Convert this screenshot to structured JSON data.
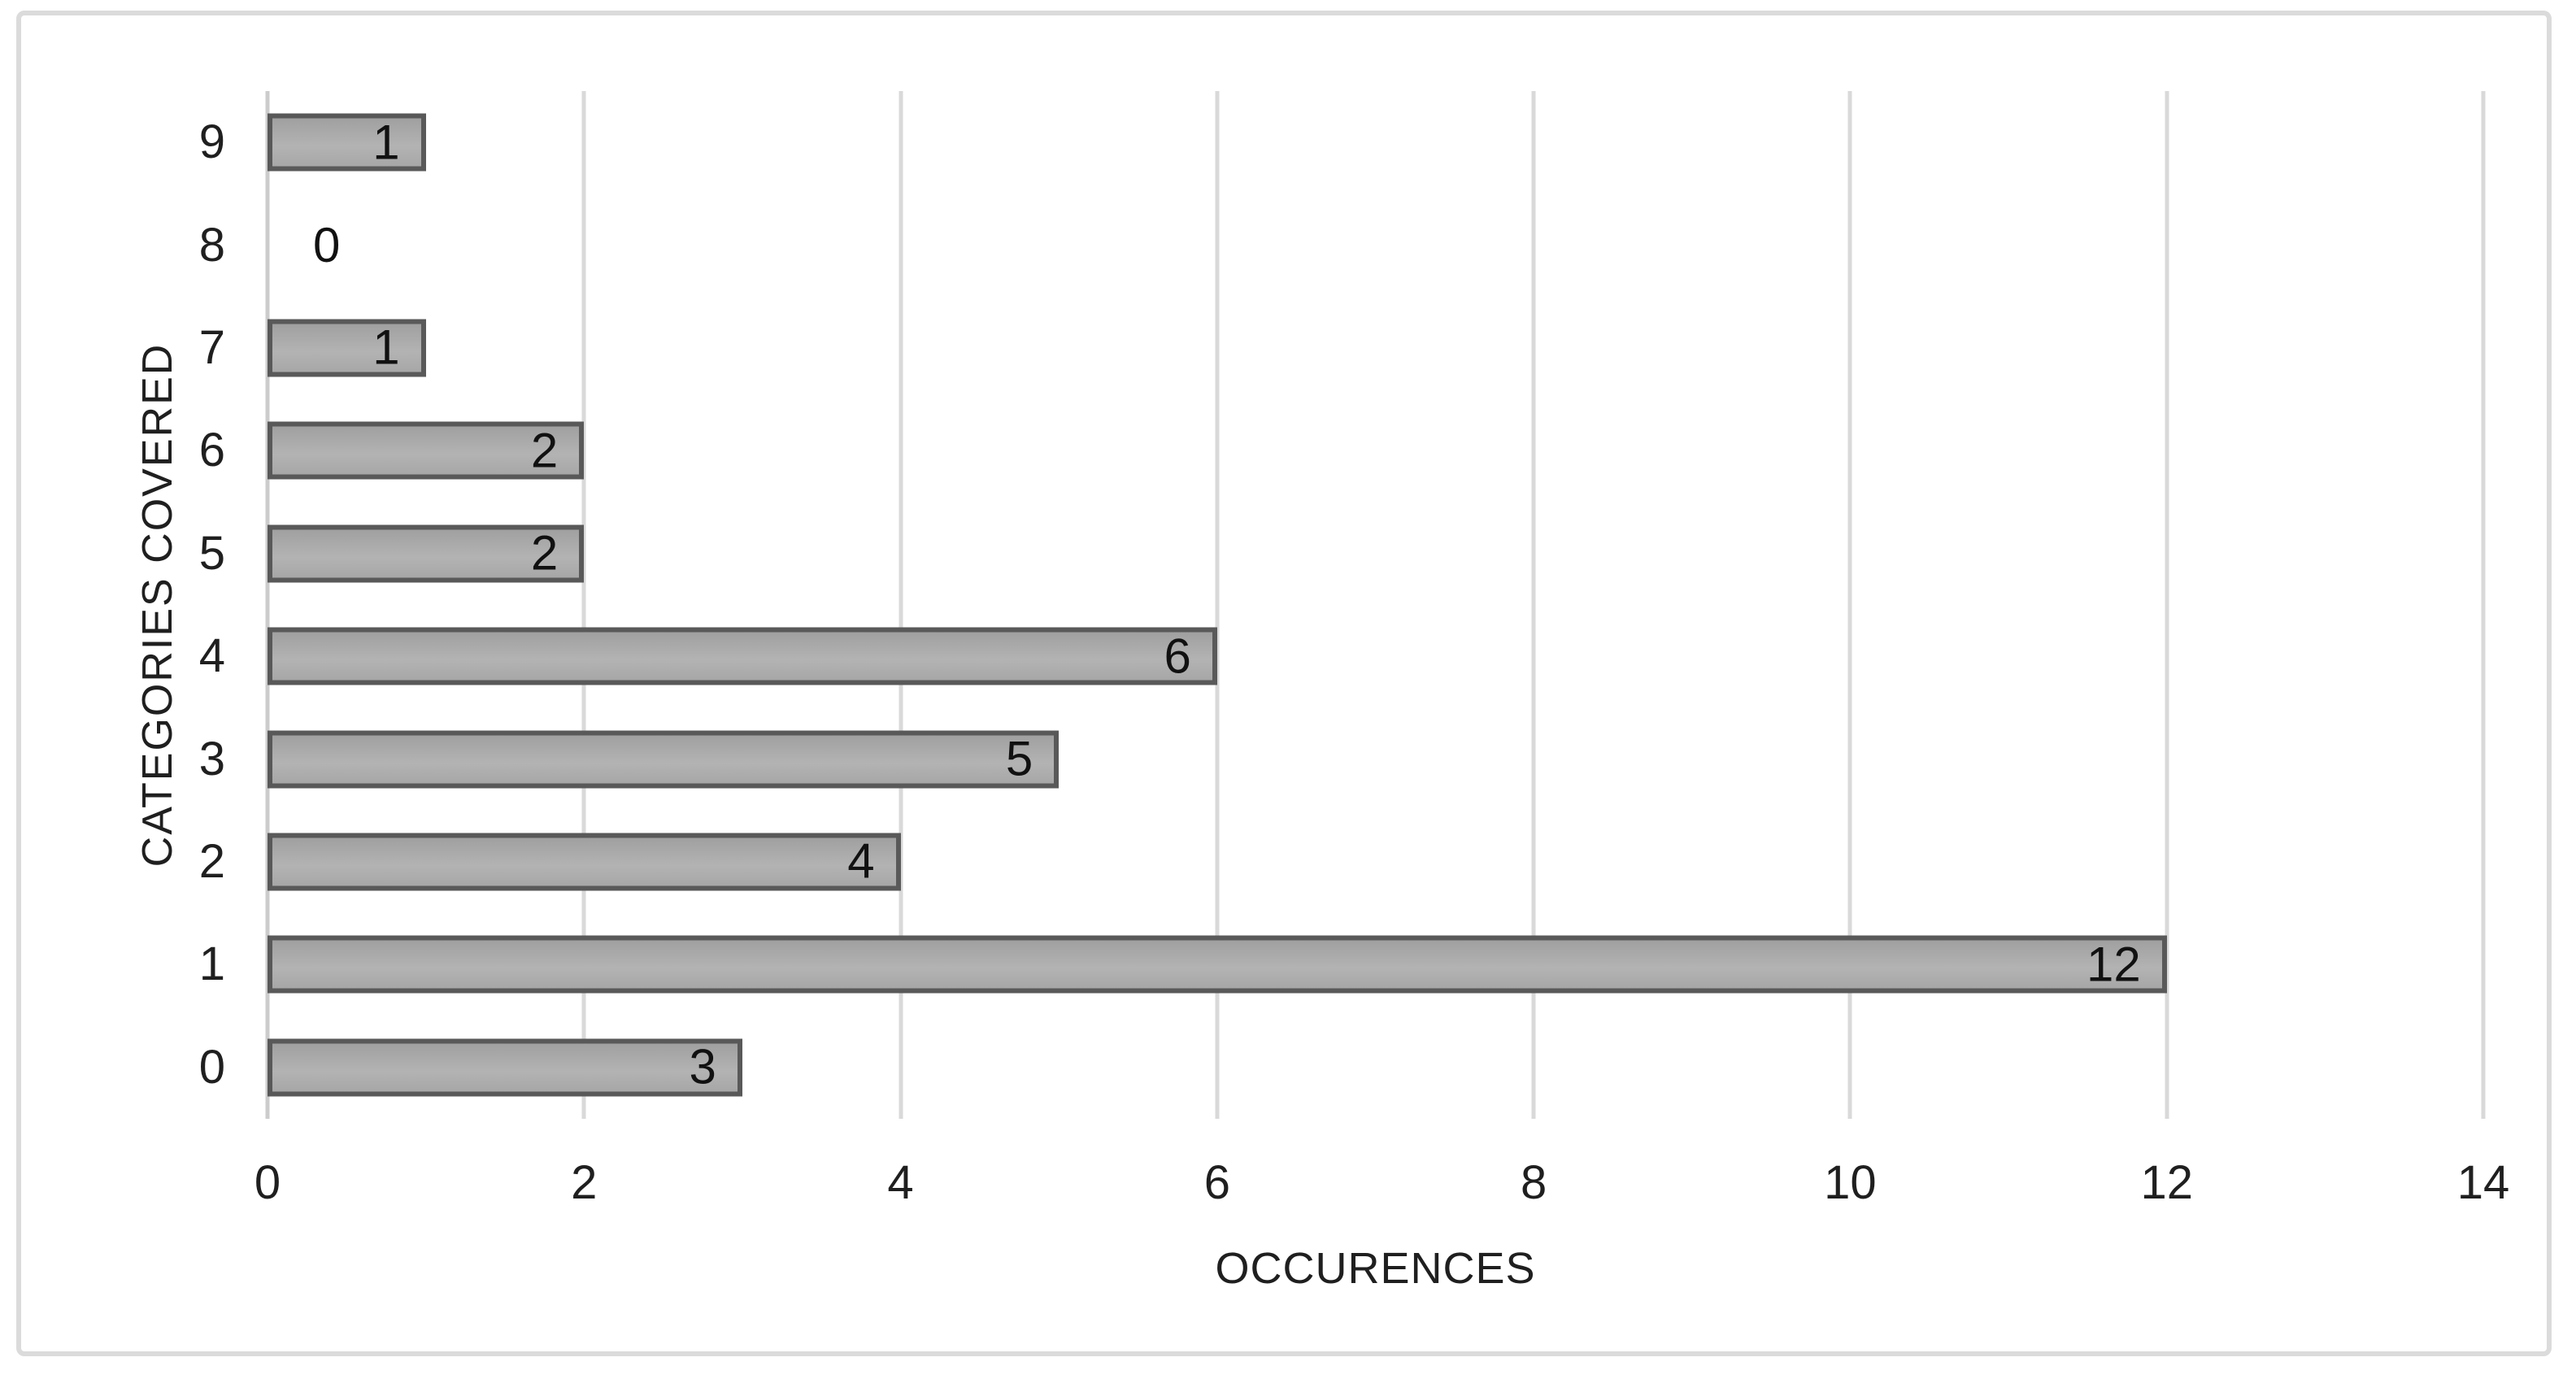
{
  "chart_data": {
    "type": "bar",
    "orientation": "horizontal",
    "title": "",
    "xlabel": "OCCURENCES",
    "ylabel": "CATEGORIES COVERED",
    "categories": [
      "9",
      "8",
      "7",
      "6",
      "5",
      "4",
      "3",
      "2",
      "1",
      "0"
    ],
    "values": [
      1,
      0,
      1,
      2,
      2,
      6,
      5,
      4,
      12,
      3
    ],
    "xlim": [
      0,
      14
    ],
    "xticks": [
      0,
      2,
      4,
      6,
      8,
      10,
      12,
      14
    ],
    "grid": "vertical",
    "legend": "none",
    "data_labels": "inside-end",
    "colors": {
      "bar_fill": "#a9a9a9",
      "bar_border": "#595959",
      "gridline": "#d9d9d9",
      "axis_line": "#cccccc",
      "frame_border": "#dbdbdb",
      "text": "#1f1f1f",
      "data_label": "#111111",
      "background": "#ffffff"
    }
  }
}
